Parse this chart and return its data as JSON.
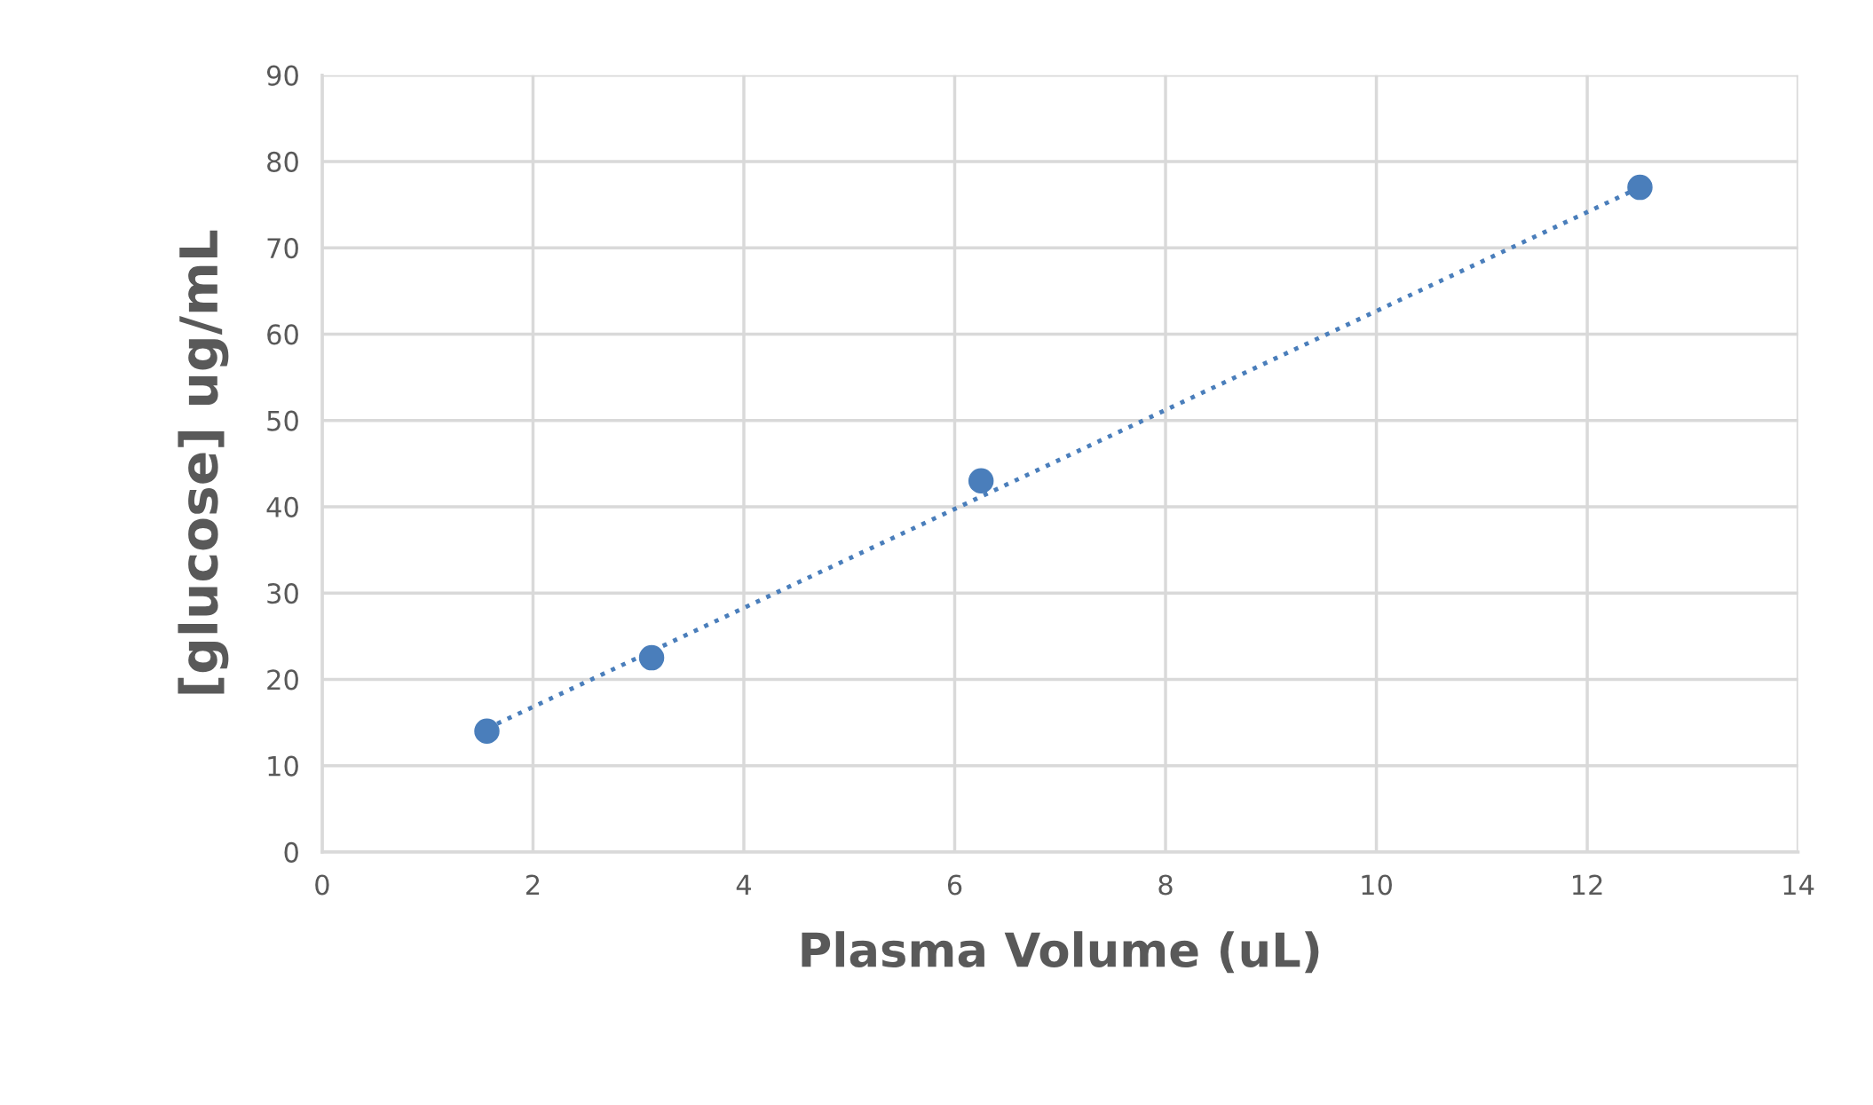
{
  "chart_data": {
    "type": "scatter",
    "xlabel": "Plasma Volume (uL)",
    "ylabel": "[glucose] ug/mL",
    "series": [
      {
        "color": "#4a7ebb",
        "x": [
          1.5625,
          3.125,
          6.25,
          12.5
        ],
        "values": [
          14,
          22.5,
          43,
          77
        ],
        "marker": "circle"
      },
      {
        "type": "line",
        "color": "#4a7ebb",
        "x": [
          1.5625,
          12.5
        ],
        "values": [
          14.3,
          77
        ],
        "line_style": "dotted",
        "marker": "none"
      }
    ],
    "xlim": [
      0,
      14
    ],
    "xticks": [
      0,
      2,
      4,
      6,
      8,
      10,
      12,
      14
    ],
    "ylim": [
      0,
      90
    ],
    "yticks": [
      0,
      10,
      20,
      30,
      40,
      50,
      60,
      70,
      80,
      90
    ],
    "grid": true,
    "legend": false
  }
}
